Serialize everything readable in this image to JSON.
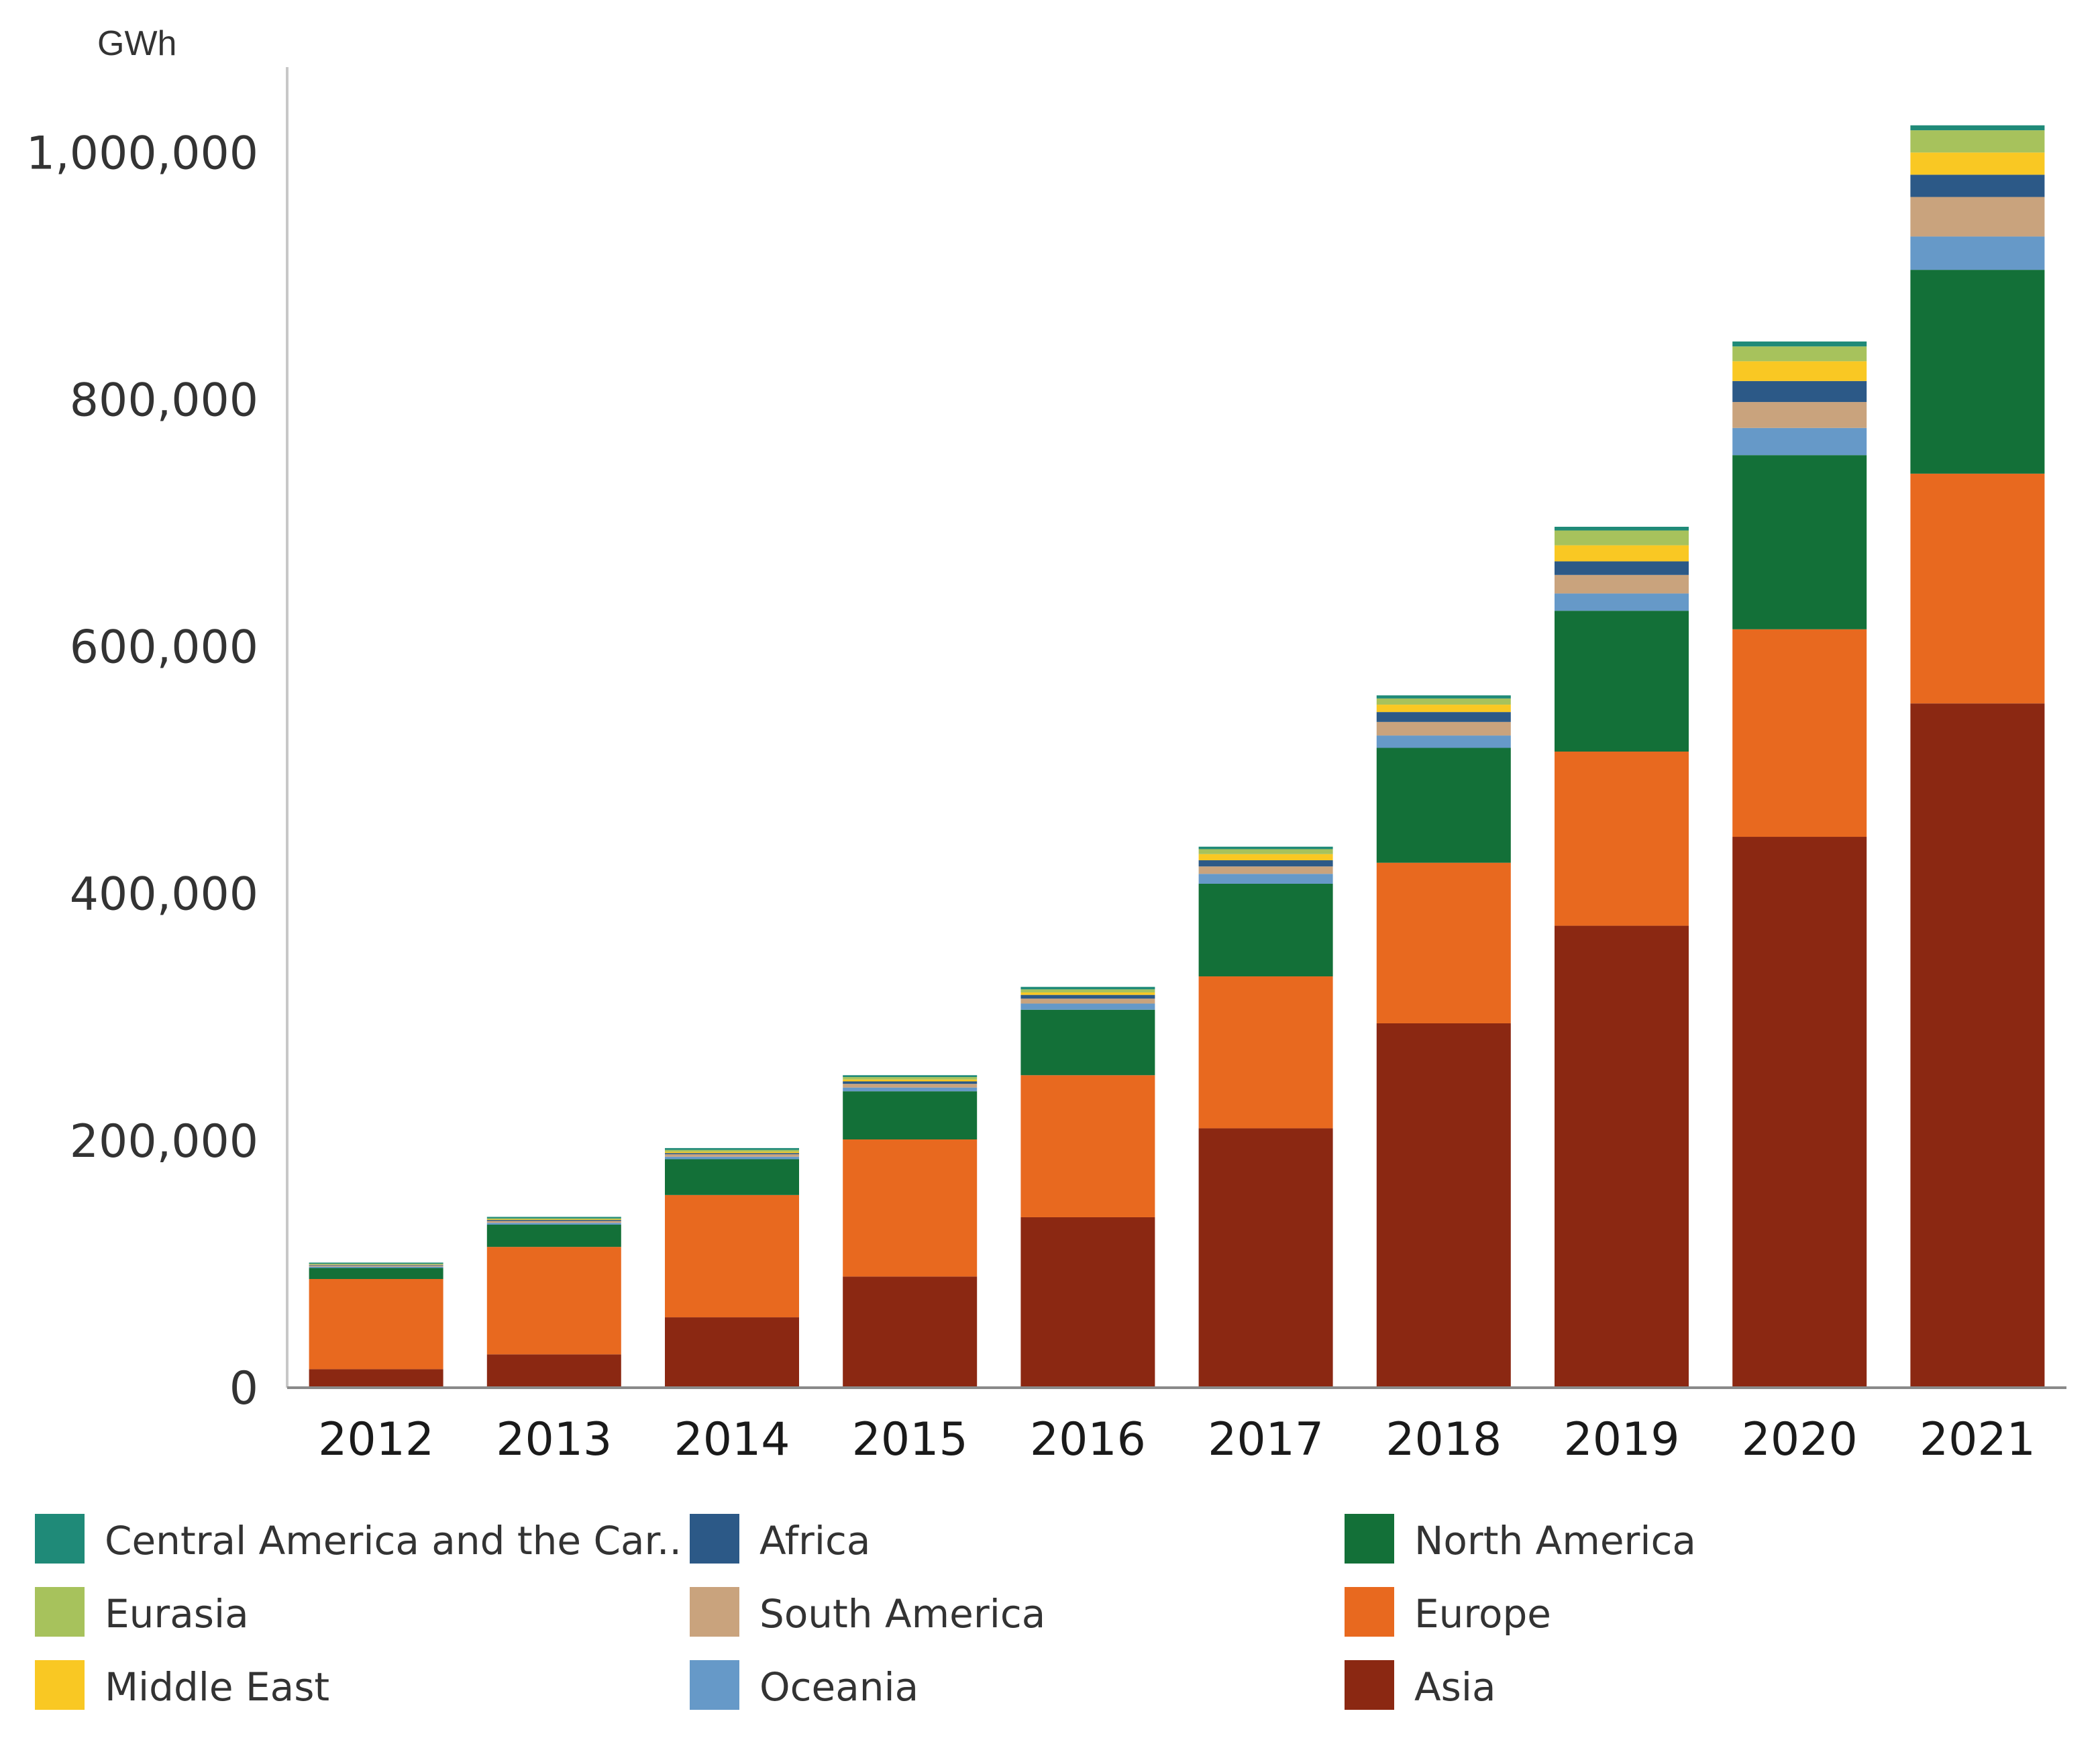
{
  "chart_data": {
    "type": "bar",
    "stacked": true,
    "unit_label": "GWh",
    "categories": [
      "2012",
      "2013",
      "2014",
      "2015",
      "2016",
      "2017",
      "2018",
      "2019",
      "2020",
      "2021"
    ],
    "ylim": [
      0,
      1080000
    ],
    "yticks": [
      0,
      200000,
      400000,
      600000,
      800000,
      1000000
    ],
    "ytick_labels": [
      "0",
      "200,000",
      "400,000",
      "600,000",
      "800,000",
      "1,000,000"
    ],
    "legend_position": "bottom",
    "series": [
      {
        "name": "Asia",
        "color": "#8B2812",
        "values": [
          15000,
          27000,
          57000,
          90000,
          138000,
          210000,
          295000,
          374000,
          446000,
          554000
        ]
      },
      {
        "name": "Europe",
        "color": "#E8691F",
        "values": [
          73000,
          87000,
          99000,
          111000,
          115000,
          123000,
          130000,
          141000,
          168000,
          186000
        ]
      },
      {
        "name": "North America",
        "color": "#137038",
        "values": [
          9000,
          18000,
          29000,
          39000,
          53000,
          75000,
          93000,
          114000,
          141000,
          165000
        ]
      },
      {
        "name": "Oceania",
        "color": "#6699C8",
        "values": [
          1000,
          1500,
          2000,
          3000,
          5000,
          8000,
          10000,
          14000,
          22000,
          27000
        ]
      },
      {
        "name": "South America",
        "color": "#C9A37D",
        "values": [
          1000,
          1500,
          2000,
          3000,
          4000,
          6000,
          11000,
          15000,
          21000,
          32000
        ]
      },
      {
        "name": "Africa",
        "color": "#2C5987",
        "values": [
          500,
          800,
          1000,
          2000,
          3000,
          5000,
          8000,
          11000,
          17000,
          18000
        ]
      },
      {
        "name": "Middle East",
        "color": "#F9C823",
        "values": [
          300,
          500,
          1000,
          1500,
          2000,
          5000,
          6000,
          13000,
          16000,
          18000
        ]
      },
      {
        "name": "Eurasia",
        "color": "#A7C25C",
        "values": [
          500,
          800,
          1500,
          2000,
          2500,
          4000,
          5000,
          12000,
          12000,
          18000
        ]
      },
      {
        "name": "Central America and the Car..",
        "color": "#1F8A78",
        "values": [
          1000,
          1200,
          1500,
          1500,
          2000,
          2000,
          2500,
          3000,
          4000,
          4000
        ]
      }
    ],
    "legend_order": [
      "Central America and the Car..",
      "Africa",
      "North America",
      "Eurasia",
      "South America",
      "Europe",
      "Middle East",
      "Oceania",
      "Asia"
    ]
  }
}
